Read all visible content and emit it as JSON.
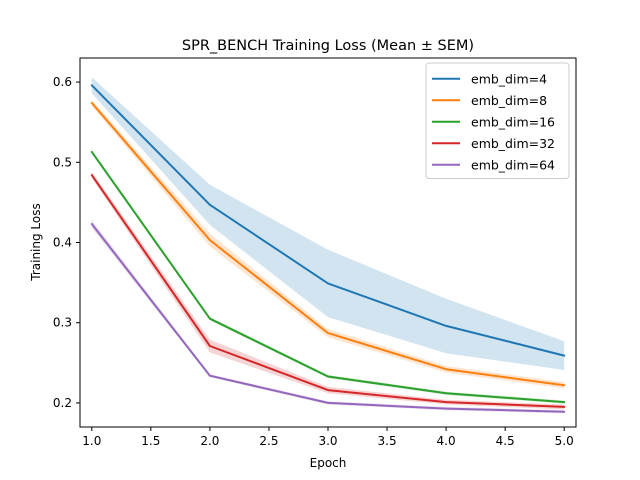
{
  "chart_data": {
    "type": "line",
    "title": "SPR_BENCH Training Loss (Mean ± SEM)",
    "xlabel": "Epoch",
    "ylabel": "Training Loss",
    "xlim": [
      0.9,
      5.1
    ],
    "ylim": [
      0.17,
      0.63
    ],
    "xticks": [
      "1.0",
      "1.5",
      "2.0",
      "2.5",
      "3.0",
      "3.5",
      "4.0",
      "4.5",
      "5.0"
    ],
    "yticks": [
      "0.2",
      "0.3",
      "0.4",
      "0.5",
      "0.6"
    ],
    "grid": false,
    "legend_position": "top-right",
    "x": [
      1,
      2,
      3,
      4,
      5
    ],
    "series": [
      {
        "name": "emb_dim=4",
        "color": "#1f77b4",
        "values": [
          0.596,
          0.447,
          0.349,
          0.296,
          0.259
        ],
        "sem": [
          0.01,
          0.025,
          0.042,
          0.034,
          0.018
        ]
      },
      {
        "name": "emb_dim=8",
        "color": "#ff7f0e",
        "values": [
          0.574,
          0.403,
          0.287,
          0.242,
          0.222
        ],
        "sem": [
          0.004,
          0.008,
          0.005,
          0.004,
          0.004
        ]
      },
      {
        "name": "emb_dim=16",
        "color": "#2ca02c",
        "values": [
          0.513,
          0.305,
          0.233,
          0.212,
          0.201
        ],
        "sem": [
          0.002,
          0.002,
          0.002,
          0.002,
          0.002
        ]
      },
      {
        "name": "emb_dim=32",
        "color": "#d62728",
        "values": [
          0.484,
          0.271,
          0.216,
          0.201,
          0.195
        ],
        "sem": [
          0.004,
          0.008,
          0.004,
          0.003,
          0.003
        ]
      },
      {
        "name": "emb_dim=64",
        "color": "#9467bd",
        "values": [
          0.423,
          0.234,
          0.2,
          0.193,
          0.189
        ],
        "sem": [
          0.005,
          0.002,
          0.002,
          0.002,
          0.002
        ]
      }
    ]
  }
}
